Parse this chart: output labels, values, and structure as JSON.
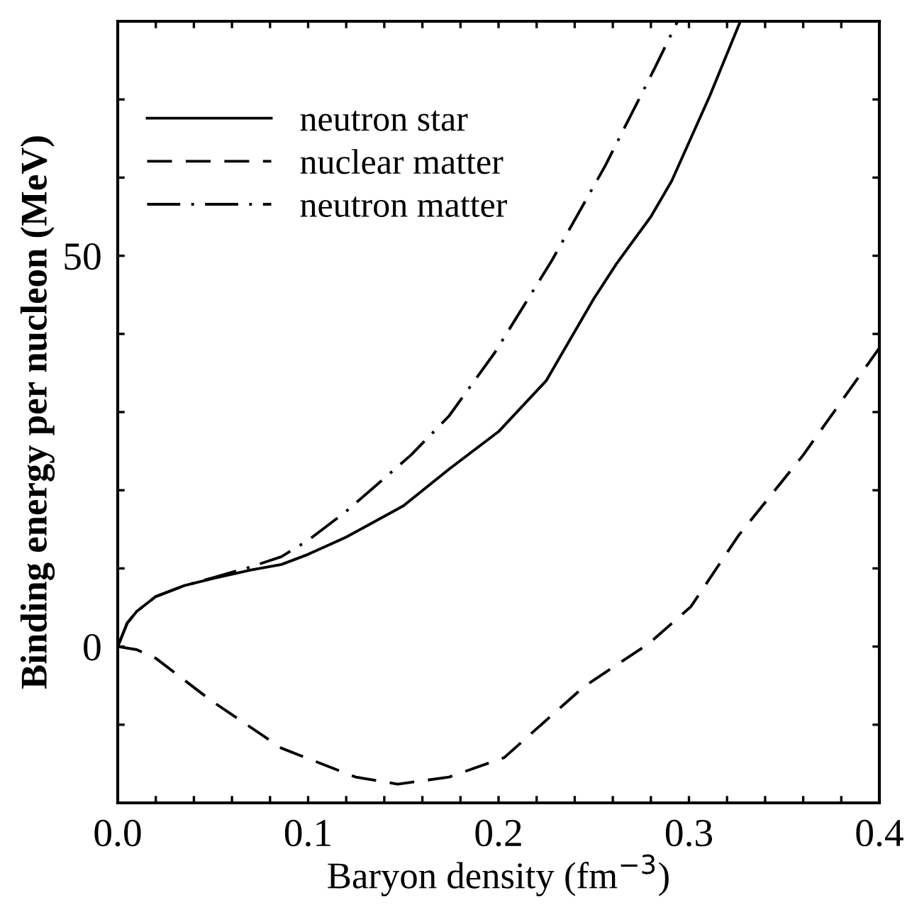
{
  "chart_data": {
    "type": "line",
    "xlabel": "Baryon density (fm$^{−3}$)",
    "ylabel": "Binding energy per nucleon (MeV)",
    "xlim": [
      0,
      0.4
    ],
    "ylim": [
      -20,
      80
    ],
    "xticks": [
      {
        "value": 0,
        "label": "0.0"
      },
      {
        "value": 0.02,
        "label": null
      },
      {
        "value": 0.04,
        "label": null
      },
      {
        "value": 0.06,
        "label": null
      },
      {
        "value": 0.08,
        "label": null
      },
      0.1,
      {
        "value": 0.12,
        "label": null
      },
      {
        "value": 0.14,
        "label": null
      },
      {
        "value": 0.16,
        "label": null
      },
      {
        "value": 0.18,
        "label": null
      },
      0.2,
      {
        "value": 0.22,
        "label": null
      },
      {
        "value": 0.24,
        "label": null
      },
      {
        "value": 0.26,
        "label": null
      },
      {
        "value": 0.28,
        "label": null
      },
      0.3,
      {
        "value": 0.32,
        "label": null
      },
      {
        "value": 0.34,
        "label": null
      },
      {
        "value": 0.36,
        "label": null
      },
      {
        "value": 0.38,
        "label": null
      },
      0.4
    ],
    "yticks": [
      {
        "value": -10,
        "label": null
      },
      0,
      {
        "value": 10,
        "label": null
      },
      {
        "value": 20,
        "label": null
      },
      {
        "value": 30,
        "label": null
      },
      {
        "value": 40,
        "label": null
      },
      50,
      {
        "value": 60,
        "label": null
      },
      {
        "value": 70,
        "label": null
      }
    ],
    "grid": false,
    "legend": "top left",
    "marker": "none",
    "series": [
      {
        "name": "neutron star",
        "color": "#000000",
        "line_style": "solid",
        "x": [
          0,
          0.005,
          0.01,
          0.02,
          0.035,
          0.05,
          0.07,
          0.086,
          0.1,
          0.12,
          0.15,
          0.174,
          0.2,
          0.225,
          0.25,
          0.262,
          0.28,
          0.291,
          0.311,
          0.327
        ],
        "values": [
          0,
          3,
          4.5,
          6.4,
          7.8,
          8.7,
          9.8,
          10.5,
          11.8,
          14,
          18,
          22.7,
          27.5,
          34,
          44.5,
          49,
          55,
          59.6,
          70.5,
          80
        ]
      },
      {
        "name": "nuclear matter",
        "color": "#000000",
        "line_style": "dashed",
        "x": [
          0,
          0.01,
          0.02,
          0.049,
          0.086,
          0.125,
          0.147,
          0.174,
          0.203,
          0.245,
          0.279,
          0.301,
          0.326,
          0.36,
          0.4
        ],
        "values": [
          0,
          -0.4,
          -1.5,
          -6.9,
          -13,
          -16.7,
          -17.6,
          -16.7,
          -14.2,
          -5.1,
          0.4,
          5.1,
          14.2,
          24.5,
          38.2
        ]
      },
      {
        "name": "neutron matter",
        "color": "#000000",
        "line_style": "dashdot",
        "x": [
          0,
          0.005,
          0.01,
          0.02,
          0.035,
          0.05,
          0.07,
          0.086,
          0.1,
          0.12,
          0.154,
          0.174,
          0.198,
          0.228,
          0.256,
          0.282,
          0.294
        ],
        "values": [
          0,
          3,
          4.5,
          6.4,
          7.8,
          8.8,
          10.2,
          11.5,
          13.6,
          17.3,
          24.5,
          29.5,
          37.6,
          49.4,
          61.5,
          74,
          80
        ]
      }
    ]
  }
}
